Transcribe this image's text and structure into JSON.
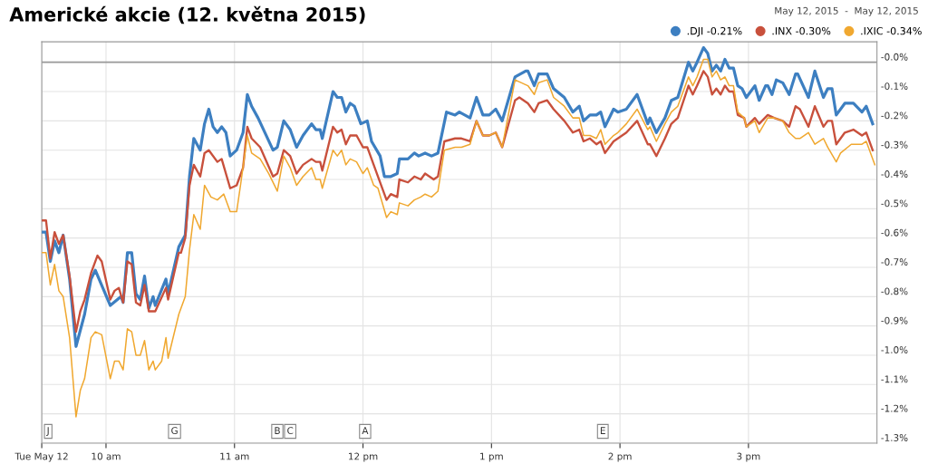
{
  "chart_data": {
    "type": "line",
    "title": "Americké akcie (12. května 2015)",
    "subtitle": "May 12, 2015  -  May 12, 2015",
    "xlim": [
      "2015-05-12T09:30",
      "2015-05-12T16:00"
    ],
    "ylim": [
      -1.3,
      0.07
    ],
    "xticks": [
      {
        "value": "2015-05-12T09:30",
        "label": "Tue May 12"
      },
      {
        "value": "2015-05-12T10:00",
        "label": "10 am"
      },
      {
        "value": "2015-05-12T11:00",
        "label": "11 am"
      },
      {
        "value": "2015-05-12T12:00",
        "label": "12 pm"
      },
      {
        "value": "2015-05-12T13:00",
        "label": "1 pm"
      },
      {
        "value": "2015-05-12T14:00",
        "label": "2 pm"
      },
      {
        "value": "2015-05-12T15:00",
        "label": "3 pm"
      }
    ],
    "yticks": [
      {
        "value": 0,
        "label": "-0.0%"
      },
      {
        "value": -0.1,
        "label": "-0.1%"
      },
      {
        "value": -0.2,
        "label": "-0.2%"
      },
      {
        "value": -0.3,
        "label": "-0.3%"
      },
      {
        "value": -0.4,
        "label": "-0.4%"
      },
      {
        "value": -0.5,
        "label": "-0.5%"
      },
      {
        "value": -0.6,
        "label": "-0.6%"
      },
      {
        "value": -0.7,
        "label": "-0.7%"
      },
      {
        "value": -0.8,
        "label": "-0.8%"
      },
      {
        "value": -0.9,
        "label": "-0.9%"
      },
      {
        "value": -1.0,
        "label": "-1.0%"
      },
      {
        "value": -1.1,
        "label": "-1.1%"
      },
      {
        "value": -1.2,
        "label": "-1.2%"
      },
      {
        "value": -1.3,
        "label": "-1.3%"
      }
    ],
    "grid": true,
    "legend": "top right",
    "marker": "none",
    "line_style": "solid",
    "ref_lines": [
      {
        "axis": "y",
        "value": 0,
        "label": null,
        "color": "#999999"
      }
    ],
    "annotations": [
      {
        "text": "J",
        "x": "2015-05-12T09:33",
        "y": -1.26
      },
      {
        "text": "G",
        "x": "2015-05-12T10:32",
        "y": -1.26
      },
      {
        "text": "B",
        "x": "2015-05-12T11:20",
        "y": -1.26
      },
      {
        "text": "C",
        "x": "2015-05-12T11:26",
        "y": -1.26
      },
      {
        "text": "A",
        "x": "2015-05-12T12:01",
        "y": -1.26
      },
      {
        "text": "E",
        "x": "2015-05-12T13:52",
        "y": -1.26
      }
    ],
    "series": [
      {
        "name": ".DJI -0.21%",
        "color": "#3d7fc1",
        "x": [
          "2015-05-12T09:30",
          "2015-05-12T09:32",
          "2015-05-12T09:34",
          "2015-05-12T09:36",
          "2015-05-12T09:38",
          "2015-05-12T09:40",
          "2015-05-12T09:43",
          "2015-05-12T09:46",
          "2015-05-12T09:50",
          "2015-05-12T09:53",
          "2015-05-12T09:55",
          "2015-05-12T10:02",
          "2015-05-12T10:07",
          "2015-05-12T10:08",
          "2015-05-12T10:10",
          "2015-05-12T10:12",
          "2015-05-12T10:14",
          "2015-05-12T10:16",
          "2015-05-12T10:18",
          "2015-05-12T10:20",
          "2015-05-12T10:22",
          "2015-05-12T10:23",
          "2015-05-12T10:28",
          "2015-05-12T10:29",
          "2015-05-12T10:34",
          "2015-05-12T10:37",
          "2015-05-12T10:39",
          "2015-05-12T10:41",
          "2015-05-12T10:44",
          "2015-05-12T10:46",
          "2015-05-12T10:48",
          "2015-05-12T10:50",
          "2015-05-12T10:52",
          "2015-05-12T10:54",
          "2015-05-12T10:56",
          "2015-05-12T10:58",
          "2015-05-12T11:01",
          "2015-05-12T11:04",
          "2015-05-12T11:06",
          "2015-05-12T11:08",
          "2015-05-12T11:11",
          "2015-05-12T11:18",
          "2015-05-12T11:20",
          "2015-05-12T11:23",
          "2015-05-12T11:26",
          "2015-05-12T11:29",
          "2015-05-12T11:32",
          "2015-05-12T11:36",
          "2015-05-12T11:38",
          "2015-05-12T11:40",
          "2015-05-12T11:41",
          "2015-05-12T11:46",
          "2015-05-12T11:48",
          "2015-05-12T11:50",
          "2015-05-12T11:52",
          "2015-05-12T11:54",
          "2015-05-12T11:56",
          "2015-05-12T11:59",
          "2015-05-12T12:02",
          "2015-05-12T12:04",
          "2015-05-12T12:08",
          "2015-05-12T12:10",
          "2015-05-12T12:13",
          "2015-05-12T12:16",
          "2015-05-12T12:17",
          "2015-05-12T12:21",
          "2015-05-12T12:24",
          "2015-05-12T12:26",
          "2015-05-12T12:29",
          "2015-05-12T12:32",
          "2015-05-12T12:35",
          "2015-05-12T12:39",
          "2015-05-12T12:43",
          "2015-05-12T12:45",
          "2015-05-12T12:50",
          "2015-05-12T12:53",
          "2015-05-12T12:56",
          "2015-05-12T12:59",
          "2015-05-12T13:02",
          "2015-05-12T13:05",
          "2015-05-12T13:11",
          "2015-05-12T13:16",
          "2015-05-12T13:17",
          "2015-05-12T13:20",
          "2015-05-12T13:22",
          "2015-05-12T13:26",
          "2015-05-12T13:29",
          "2015-05-12T13:34",
          "2015-05-12T13:38",
          "2015-05-12T13:41",
          "2015-05-12T13:43",
          "2015-05-12T13:46",
          "2015-05-12T13:49",
          "2015-05-12T13:51",
          "2015-05-12T13:53",
          "2015-05-12T13:57",
          "2015-05-12T13:59",
          "2015-05-12T14:03",
          "2015-05-12T14:08",
          "2015-05-12T14:13",
          "2015-05-12T14:14",
          "2015-05-12T14:17",
          "2015-05-12T14:21",
          "2015-05-12T14:24",
          "2015-05-12T14:27",
          "2015-05-12T14:32",
          "2015-05-12T14:34",
          "2015-05-12T14:36",
          "2015-05-12T14:39",
          "2015-05-12T14:41",
          "2015-05-12T14:43",
          "2015-05-12T14:45",
          "2015-05-12T14:47",
          "2015-05-12T14:49",
          "2015-05-12T14:51",
          "2015-05-12T14:53",
          "2015-05-12T14:55",
          "2015-05-12T14:57",
          "2015-05-12T14:59",
          "2015-05-12T15:03",
          "2015-05-12T15:05",
          "2015-05-12T15:08",
          "2015-05-12T15:09",
          "2015-05-12T15:11",
          "2015-05-12T15:13",
          "2015-05-12T15:16",
          "2015-05-12T15:19",
          "2015-05-12T15:22",
          "2015-05-12T15:23",
          "2015-05-12T15:28",
          "2015-05-12T15:31",
          "2015-05-12T15:35",
          "2015-05-12T15:37",
          "2015-05-12T15:39",
          "2015-05-12T15:41",
          "2015-05-12T15:45",
          "2015-05-12T15:49",
          "2015-05-12T15:53",
          "2015-05-12T15:55",
          "2015-05-12T15:58"
        ],
        "values": [
          -0.58,
          -0.58,
          -0.68,
          -0.61,
          -0.65,
          -0.59,
          -0.74,
          -0.97,
          -0.86,
          -0.74,
          -0.71,
          -0.83,
          -0.8,
          -0.82,
          -0.65,
          -0.65,
          -0.79,
          -0.81,
          -0.73,
          -0.84,
          -0.8,
          -0.83,
          -0.74,
          -0.79,
          -0.63,
          -0.59,
          -0.39,
          -0.26,
          -0.3,
          -0.21,
          -0.16,
          -0.22,
          -0.24,
          -0.22,
          -0.24,
          -0.32,
          -0.3,
          -0.24,
          -0.11,
          -0.15,
          -0.19,
          -0.3,
          -0.29,
          -0.2,
          -0.23,
          -0.29,
          -0.25,
          -0.21,
          -0.23,
          -0.23,
          -0.26,
          -0.1,
          -0.12,
          -0.12,
          -0.17,
          -0.14,
          -0.15,
          -0.21,
          -0.2,
          -0.27,
          -0.32,
          -0.39,
          -0.39,
          -0.38,
          -0.33,
          -0.33,
          -0.31,
          -0.32,
          -0.31,
          -0.32,
          -0.31,
          -0.17,
          -0.18,
          -0.17,
          -0.19,
          -0.12,
          -0.18,
          -0.18,
          -0.16,
          -0.2,
          -0.05,
          -0.03,
          -0.03,
          -0.08,
          -0.04,
          -0.04,
          -0.09,
          -0.12,
          -0.17,
          -0.15,
          -0.2,
          -0.18,
          -0.18,
          -0.17,
          -0.22,
          -0.16,
          -0.17,
          -0.16,
          -0.11,
          -0.21,
          -0.19,
          -0.24,
          -0.19,
          -0.13,
          -0.12,
          0.0,
          -0.03,
          0.0,
          0.05,
          0.03,
          -0.03,
          -0.01,
          -0.03,
          0.01,
          -0.02,
          -0.02,
          -0.08,
          -0.09,
          -0.12,
          -0.08,
          -0.13,
          -0.08,
          -0.08,
          -0.11,
          -0.06,
          -0.07,
          -0.11,
          -0.04,
          -0.04,
          -0.12,
          -0.03,
          -0.12,
          -0.09,
          -0.09,
          -0.18,
          -0.14,
          -0.14,
          -0.17,
          -0.15,
          -0.21
        ]
      },
      {
        "name": ".INX -0.30%",
        "color": "#c8503c",
        "x": [
          "2015-05-12T09:30",
          "2015-05-12T09:32",
          "2015-05-12T09:34",
          "2015-05-12T09:36",
          "2015-05-12T09:38",
          "2015-05-12T09:40",
          "2015-05-12T09:43",
          "2015-05-12T09:46",
          "2015-05-12T09:48",
          "2015-05-12T09:50",
          "2015-05-12T09:53",
          "2015-05-12T09:56",
          "2015-05-12T09:58",
          "2015-05-12T10:02",
          "2015-05-12T10:04",
          "2015-05-12T10:06",
          "2015-05-12T10:08",
          "2015-05-12T10:10",
          "2015-05-12T10:12",
          "2015-05-12T10:14",
          "2015-05-12T10:16",
          "2015-05-12T10:18",
          "2015-05-12T10:20",
          "2015-05-12T10:23",
          "2015-05-12T10:28",
          "2015-05-12T10:29",
          "2015-05-12T10:34",
          "2015-05-12T10:35",
          "2015-05-12T10:37",
          "2015-05-12T10:39",
          "2015-05-12T10:41",
          "2015-05-12T10:44",
          "2015-05-12T10:46",
          "2015-05-12T10:48",
          "2015-05-12T10:52",
          "2015-05-12T10:54",
          "2015-05-12T10:58",
          "2015-05-12T11:01",
          "2015-05-12T11:04",
          "2015-05-12T11:06",
          "2015-05-12T11:08",
          "2015-05-12T11:12",
          "2015-05-12T11:18",
          "2015-05-12T11:20",
          "2015-05-12T11:23",
          "2015-05-12T11:26",
          "2015-05-12T11:29",
          "2015-05-12T11:32",
          "2015-05-12T11:36",
          "2015-05-12T11:38",
          "2015-05-12T11:40",
          "2015-05-12T11:41",
          "2015-05-12T11:46",
          "2015-05-12T11:48",
          "2015-05-12T11:50",
          "2015-05-12T11:52",
          "2015-05-12T11:54",
          "2015-05-12T11:57",
          "2015-05-12T12:00",
          "2015-05-12T12:02",
          "2015-05-12T12:05",
          "2015-05-12T12:07",
          "2015-05-12T12:11",
          "2015-05-12T12:13",
          "2015-05-12T12:16",
          "2015-05-12T12:17",
          "2015-05-12T12:21",
          "2015-05-12T12:24",
          "2015-05-12T12:27",
          "2015-05-12T12:29",
          "2015-05-12T12:33",
          "2015-05-12T12:35",
          "2015-05-12T12:38",
          "2015-05-12T12:43",
          "2015-05-12T12:46",
          "2015-05-12T12:50",
          "2015-05-12T12:53",
          "2015-05-12T12:56",
          "2015-05-12T12:59",
          "2015-05-12T13:02",
          "2015-05-12T13:05",
          "2015-05-12T13:11",
          "2015-05-12T13:13",
          "2015-05-12T13:17",
          "2015-05-12T13:20",
          "2015-05-12T13:22",
          "2015-05-12T13:26",
          "2015-05-12T13:29",
          "2015-05-12T13:34",
          "2015-05-12T13:38",
          "2015-05-12T13:41",
          "2015-05-12T13:43",
          "2015-05-12T13:46",
          "2015-05-12T13:49",
          "2015-05-12T13:51",
          "2015-05-12T13:53",
          "2015-05-12T13:57",
          "2015-05-12T13:59",
          "2015-05-12T14:03",
          "2015-05-12T14:08",
          "2015-05-12T14:13",
          "2015-05-12T14:14",
          "2015-05-12T14:17",
          "2015-05-12T14:21",
          "2015-05-12T14:24",
          "2015-05-12T14:27",
          "2015-05-12T14:32",
          "2015-05-12T14:34",
          "2015-05-12T14:36",
          "2015-05-12T14:39",
          "2015-05-12T14:41",
          "2015-05-12T14:43",
          "2015-05-12T14:45",
          "2015-05-12T14:47",
          "2015-05-12T14:49",
          "2015-05-12T14:51",
          "2015-05-12T14:53",
          "2015-05-12T14:55",
          "2015-05-12T14:58",
          "2015-05-12T14:59",
          "2015-05-12T15:03",
          "2015-05-12T15:05",
          "2015-05-12T15:09",
          "2015-05-12T15:12",
          "2015-05-12T15:16",
          "2015-05-12T15:19",
          "2015-05-12T15:22",
          "2015-05-12T15:24",
          "2015-05-12T15:28",
          "2015-05-12T15:31",
          "2015-05-12T15:35",
          "2015-05-12T15:37",
          "2015-05-12T15:39",
          "2015-05-12T15:41",
          "2015-05-12T15:45",
          "2015-05-12T15:49",
          "2015-05-12T15:53",
          "2015-05-12T15:55",
          "2015-05-12T15:58"
        ],
        "values": [
          -0.54,
          -0.54,
          -0.67,
          -0.58,
          -0.62,
          -0.59,
          -0.73,
          -0.92,
          -0.85,
          -0.81,
          -0.72,
          -0.66,
          -0.68,
          -0.81,
          -0.78,
          -0.77,
          -0.82,
          -0.68,
          -0.69,
          -0.82,
          -0.83,
          -0.76,
          -0.85,
          -0.85,
          -0.77,
          -0.81,
          -0.65,
          -0.65,
          -0.6,
          -0.42,
          -0.35,
          -0.39,
          -0.31,
          -0.3,
          -0.34,
          -0.33,
          -0.43,
          -0.42,
          -0.36,
          -0.22,
          -0.26,
          -0.29,
          -0.39,
          -0.38,
          -0.3,
          -0.32,
          -0.38,
          -0.35,
          -0.33,
          -0.34,
          -0.34,
          -0.37,
          -0.22,
          -0.24,
          -0.23,
          -0.28,
          -0.25,
          -0.25,
          -0.29,
          -0.29,
          -0.35,
          -0.39,
          -0.47,
          -0.45,
          -0.46,
          -0.4,
          -0.41,
          -0.39,
          -0.4,
          -0.38,
          -0.4,
          -0.39,
          -0.27,
          -0.26,
          -0.26,
          -0.27,
          -0.2,
          -0.25,
          -0.25,
          -0.24,
          -0.29,
          -0.13,
          -0.12,
          -0.14,
          -0.17,
          -0.14,
          -0.13,
          -0.16,
          -0.2,
          -0.24,
          -0.23,
          -0.27,
          -0.26,
          -0.28,
          -0.27,
          -0.31,
          -0.27,
          -0.26,
          -0.24,
          -0.2,
          -0.28,
          -0.28,
          -0.32,
          -0.26,
          -0.21,
          -0.19,
          -0.08,
          -0.11,
          -0.08,
          -0.03,
          -0.05,
          -0.11,
          -0.09,
          -0.11,
          -0.08,
          -0.1,
          -0.1,
          -0.18,
          -0.19,
          -0.22,
          -0.19,
          -0.21,
          -0.18,
          -0.19,
          -0.2,
          -0.22,
          -0.15,
          -0.16,
          -0.22,
          -0.15,
          -0.22,
          -0.2,
          -0.2,
          -0.28,
          -0.24,
          -0.23,
          -0.25,
          -0.24,
          -0.3
        ]
      },
      {
        "name": ".IXIC -0.34%",
        "color": "#f0a830",
        "x": [
          "2015-05-12T09:30",
          "2015-05-12T09:32",
          "2015-05-12T09:34",
          "2015-05-12T09:36",
          "2015-05-12T09:38",
          "2015-05-12T09:40",
          "2015-05-12T09:43",
          "2015-05-12T09:46",
          "2015-05-12T09:48",
          "2015-05-12T09:50",
          "2015-05-12T09:53",
          "2015-05-12T09:55",
          "2015-05-12T09:58",
          "2015-05-12T10:02",
          "2015-05-12T10:04",
          "2015-05-12T10:06",
          "2015-05-12T10:08",
          "2015-05-12T10:10",
          "2015-05-12T10:12",
          "2015-05-12T10:14",
          "2015-05-12T10:16",
          "2015-05-12T10:18",
          "2015-05-12T10:20",
          "2015-05-12T10:22",
          "2015-05-12T10:23",
          "2015-05-12T10:26",
          "2015-05-12T10:28",
          "2015-05-12T10:29",
          "2015-05-12T10:34",
          "2015-05-12T10:35",
          "2015-05-12T10:37",
          "2015-05-12T10:39",
          "2015-05-12T10:41",
          "2015-05-12T10:44",
          "2015-05-12T10:46",
          "2015-05-12T10:49",
          "2015-05-12T10:52",
          "2015-05-12T10:55",
          "2015-05-12T10:58",
          "2015-05-12T11:01",
          "2015-05-12T11:03",
          "2015-05-12T11:06",
          "2015-05-12T11:08",
          "2015-05-12T11:12",
          "2015-05-12T11:16",
          "2015-05-12T11:20",
          "2015-05-12T11:23",
          "2015-05-12T11:26",
          "2015-05-12T11:29",
          "2015-05-12T11:32",
          "2015-05-12T11:36",
          "2015-05-12T11:38",
          "2015-05-12T11:40",
          "2015-05-12T11:41",
          "2015-05-12T11:46",
          "2015-05-12T11:48",
          "2015-05-12T11:50",
          "2015-05-12T11:52",
          "2015-05-12T11:54",
          "2015-05-12T11:57",
          "2015-05-12T12:00",
          "2015-05-12T12:02",
          "2015-05-12T12:05",
          "2015-05-12T12:07",
          "2015-05-12T12:11",
          "2015-05-12T12:13",
          "2015-05-12T12:16",
          "2015-05-12T12:17",
          "2015-05-12T12:21",
          "2015-05-12T12:24",
          "2015-05-12T12:27",
          "2015-05-12T12:29",
          "2015-05-12T12:32",
          "2015-05-12T12:35",
          "2015-05-12T12:38",
          "2015-05-12T12:43",
          "2015-05-12T12:46",
          "2015-05-12T12:50",
          "2015-05-12T12:53",
          "2015-05-12T12:56",
          "2015-05-12T12:59",
          "2015-05-12T13:02",
          "2015-05-12T13:05",
          "2015-05-12T13:11",
          "2015-05-12T13:14",
          "2015-05-12T13:17",
          "2015-05-12T13:20",
          "2015-05-12T13:22",
          "2015-05-12T13:26",
          "2015-05-12T13:29",
          "2015-05-12T13:34",
          "2015-05-12T13:38",
          "2015-05-12T13:41",
          "2015-05-12T13:43",
          "2015-05-12T13:46",
          "2015-05-12T13:49",
          "2015-05-12T13:51",
          "2015-05-12T13:53",
          "2015-05-12T13:57",
          "2015-05-12T13:59",
          "2015-05-12T14:03",
          "2015-05-12T14:08",
          "2015-05-12T14:13",
          "2015-05-12T14:14",
          "2015-05-12T14:17",
          "2015-05-12T14:21",
          "2015-05-12T14:24",
          "2015-05-12T14:27",
          "2015-05-12T14:32",
          "2015-05-12T14:34",
          "2015-05-12T14:36",
          "2015-05-12T14:39",
          "2015-05-12T14:41",
          "2015-05-12T14:43",
          "2015-05-12T14:45",
          "2015-05-12T14:47",
          "2015-05-12T14:49",
          "2015-05-12T14:51",
          "2015-05-12T14:53",
          "2015-05-12T14:55",
          "2015-05-12T14:58",
          "2015-05-12T14:59",
          "2015-05-12T15:03",
          "2015-05-12T15:05",
          "2015-05-12T15:09",
          "2015-05-12T15:12",
          "2015-05-12T15:16",
          "2015-05-12T15:19",
          "2015-05-12T15:22",
          "2015-05-12T15:24",
          "2015-05-12T15:28",
          "2015-05-12T15:31",
          "2015-05-12T15:35",
          "2015-05-12T15:37",
          "2015-05-12T15:41",
          "2015-05-12T15:43",
          "2015-05-12T15:48",
          "2015-05-12T15:53",
          "2015-05-12T15:55",
          "2015-05-12T15:59"
        ],
        "values": [
          -0.65,
          -0.65,
          -0.76,
          -0.69,
          -0.78,
          -0.8,
          -0.94,
          -1.21,
          -1.12,
          -1.08,
          -0.94,
          -0.92,
          -0.93,
          -1.08,
          -1.02,
          -1.02,
          -1.05,
          -0.91,
          -0.92,
          -1.0,
          -1.0,
          -0.95,
          -1.05,
          -1.02,
          -1.05,
          -1.02,
          -0.94,
          -1.01,
          -0.86,
          -0.84,
          -0.8,
          -0.64,
          -0.52,
          -0.57,
          -0.42,
          -0.46,
          -0.47,
          -0.45,
          -0.51,
          -0.51,
          -0.41,
          -0.25,
          -0.31,
          -0.33,
          -0.38,
          -0.44,
          -0.32,
          -0.36,
          -0.42,
          -0.39,
          -0.36,
          -0.4,
          -0.4,
          -0.43,
          -0.3,
          -0.32,
          -0.3,
          -0.35,
          -0.33,
          -0.34,
          -0.38,
          -0.36,
          -0.42,
          -0.43,
          -0.53,
          -0.51,
          -0.52,
          -0.48,
          -0.49,
          -0.47,
          -0.46,
          -0.45,
          -0.46,
          -0.44,
          -0.3,
          -0.29,
          -0.29,
          -0.28,
          -0.2,
          -0.25,
          -0.25,
          -0.24,
          -0.29,
          -0.06,
          -0.07,
          -0.08,
          -0.11,
          -0.07,
          -0.06,
          -0.12,
          -0.15,
          -0.19,
          -0.19,
          -0.25,
          -0.25,
          -0.26,
          -0.23,
          -0.28,
          -0.25,
          -0.24,
          -0.21,
          -0.16,
          -0.23,
          -0.22,
          -0.27,
          -0.21,
          -0.17,
          -0.15,
          -0.05,
          -0.08,
          -0.05,
          0.01,
          0.01,
          -0.05,
          -0.03,
          -0.06,
          -0.05,
          -0.08,
          -0.08,
          -0.17,
          -0.19,
          -0.22,
          -0.2,
          -0.24,
          -0.19,
          -0.19,
          -0.2,
          -0.24,
          -0.26,
          -0.26,
          -0.24,
          -0.28,
          -0.26,
          -0.29,
          -0.34,
          -0.31,
          -0.28,
          -0.28,
          -0.27,
          -0.35
        ]
      }
    ]
  }
}
